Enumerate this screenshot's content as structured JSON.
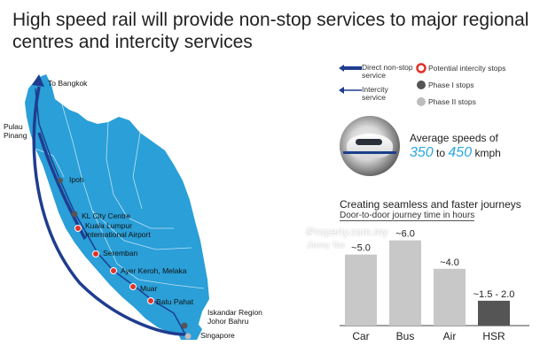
{
  "title": "High speed rail will provide non-stop services to major regional centres and intercity services",
  "legend": {
    "direct": "Direct non-stop service",
    "intercity": "Intercity service",
    "potential": "Potential intercity stops",
    "phase1": "Phase I stops",
    "phase2": "Phase II stops"
  },
  "places": {
    "bangkok": "To Bangkok",
    "pulau_pinang": "Pulau Pinang",
    "ipoh": "Ipoh",
    "kl": "KL City Centre",
    "klia": "Kuala Lumpur International Airport",
    "seremban": "Seremban",
    "ayer_keroh": "Ayer Keroh, Melaka",
    "muar": "Muar",
    "batu_pahat": "Batu Pahat",
    "iskandar": "Iskandar Region Johor Bahru",
    "singapore": "Singapore"
  },
  "speed": {
    "label": "Average speeds of",
    "low": "350",
    "to": "to",
    "high": "450",
    "unit": "kmph"
  },
  "watermark": {
    "site": "iProperty.com.my",
    "user": "Jimmy Tan"
  },
  "colors": {
    "map_land": "#2a9fd8",
    "route": "#1f3d8f",
    "stop_potential": "#e0322b",
    "phase1": "#555555",
    "phase2": "#bdbdbd",
    "bar": "#c8c8c8",
    "bar_hsr": "#555555",
    "accent": "#2aa7df"
  },
  "chart_data": {
    "type": "bar",
    "title": "Creating seamless and faster journeys",
    "subtitle": "Door-to-door journey time in hours",
    "xlabel": "",
    "ylabel": "",
    "baseline_label": "Iskandar Region",
    "categories": [
      "Car",
      "Bus",
      "Air",
      "HSR"
    ],
    "values": [
      5.0,
      6.0,
      4.0,
      1.75
    ],
    "value_labels": [
      "5.0",
      "6.0",
      "4.0",
      "1.5 - 2.0"
    ],
    "ylim": [
      0,
      6.6
    ],
    "grid": false
  }
}
